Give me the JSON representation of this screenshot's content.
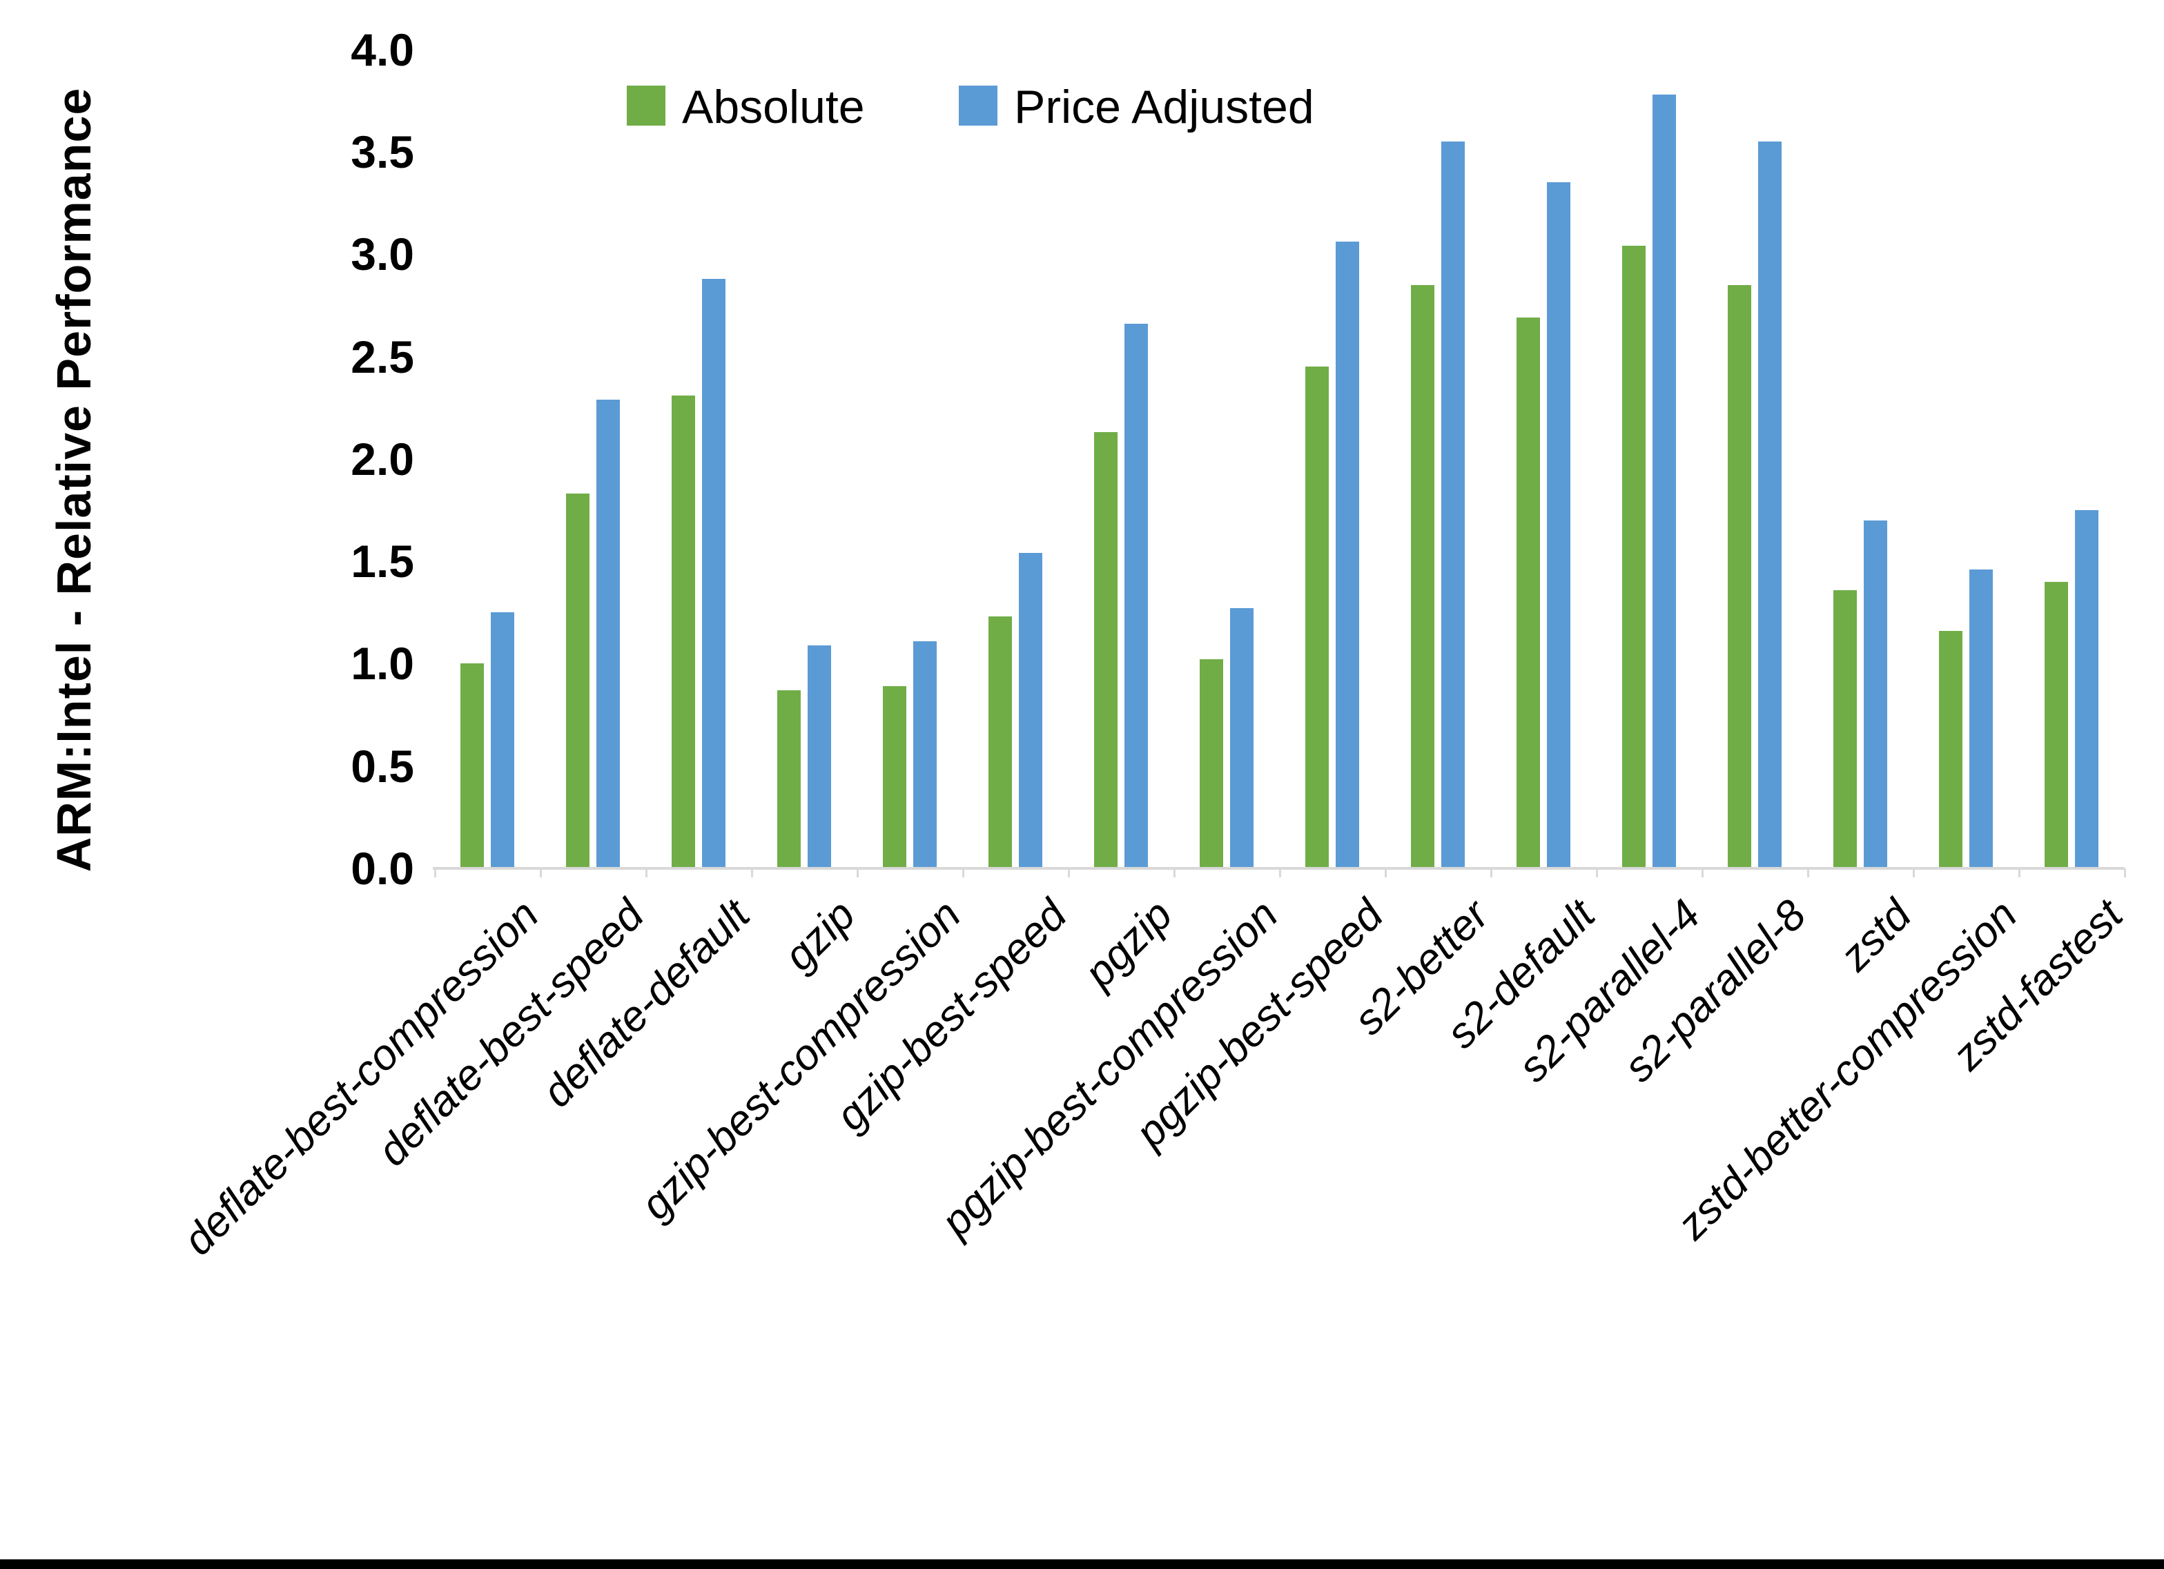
{
  "chart_data": {
    "type": "bar",
    "title": "",
    "xlabel": "",
    "ylabel": "ARM:Intel - Relative Performance",
    "ylim": [
      0.0,
      4.0
    ],
    "ytick_step": 0.5,
    "ytick_labels": [
      "0.0",
      "0.5",
      "1.0",
      "1.5",
      "2.0",
      "2.5",
      "3.0",
      "3.5",
      "4.0"
    ],
    "grid": false,
    "legend_position": "top-center",
    "categories": [
      "deflate-best-compression",
      "deflate-best-speed",
      "deflate-default",
      "gzip",
      "gzip-best-compression",
      "gzip-best-speed",
      "pgzip",
      "pgzip-best-compression",
      "pgzip-best-speed",
      "s2-better",
      "s2-default",
      "s2-parallel-4",
      "s2-parallel-8",
      "zstd",
      "zstd-better-compression",
      "zstd-fastest"
    ],
    "series": [
      {
        "name": "Absolute",
        "color": "#70AD47",
        "values": [
          1.0,
          1.83,
          2.31,
          0.87,
          0.89,
          1.23,
          2.13,
          1.02,
          2.45,
          2.85,
          2.69,
          3.04,
          2.85,
          1.36,
          1.16,
          1.4
        ]
      },
      {
        "name": "Price Adjusted",
        "color": "#5B9BD5",
        "values": [
          1.25,
          2.29,
          2.88,
          1.09,
          1.11,
          1.54,
          2.66,
          1.27,
          3.06,
          3.55,
          3.35,
          3.78,
          3.55,
          1.7,
          1.46,
          1.75
        ]
      }
    ]
  },
  "colors": {
    "background": "#FFFFFF",
    "axis_line": "#D9D9D9",
    "text": "#000000",
    "bottom_edge_bar": "#000000"
  }
}
